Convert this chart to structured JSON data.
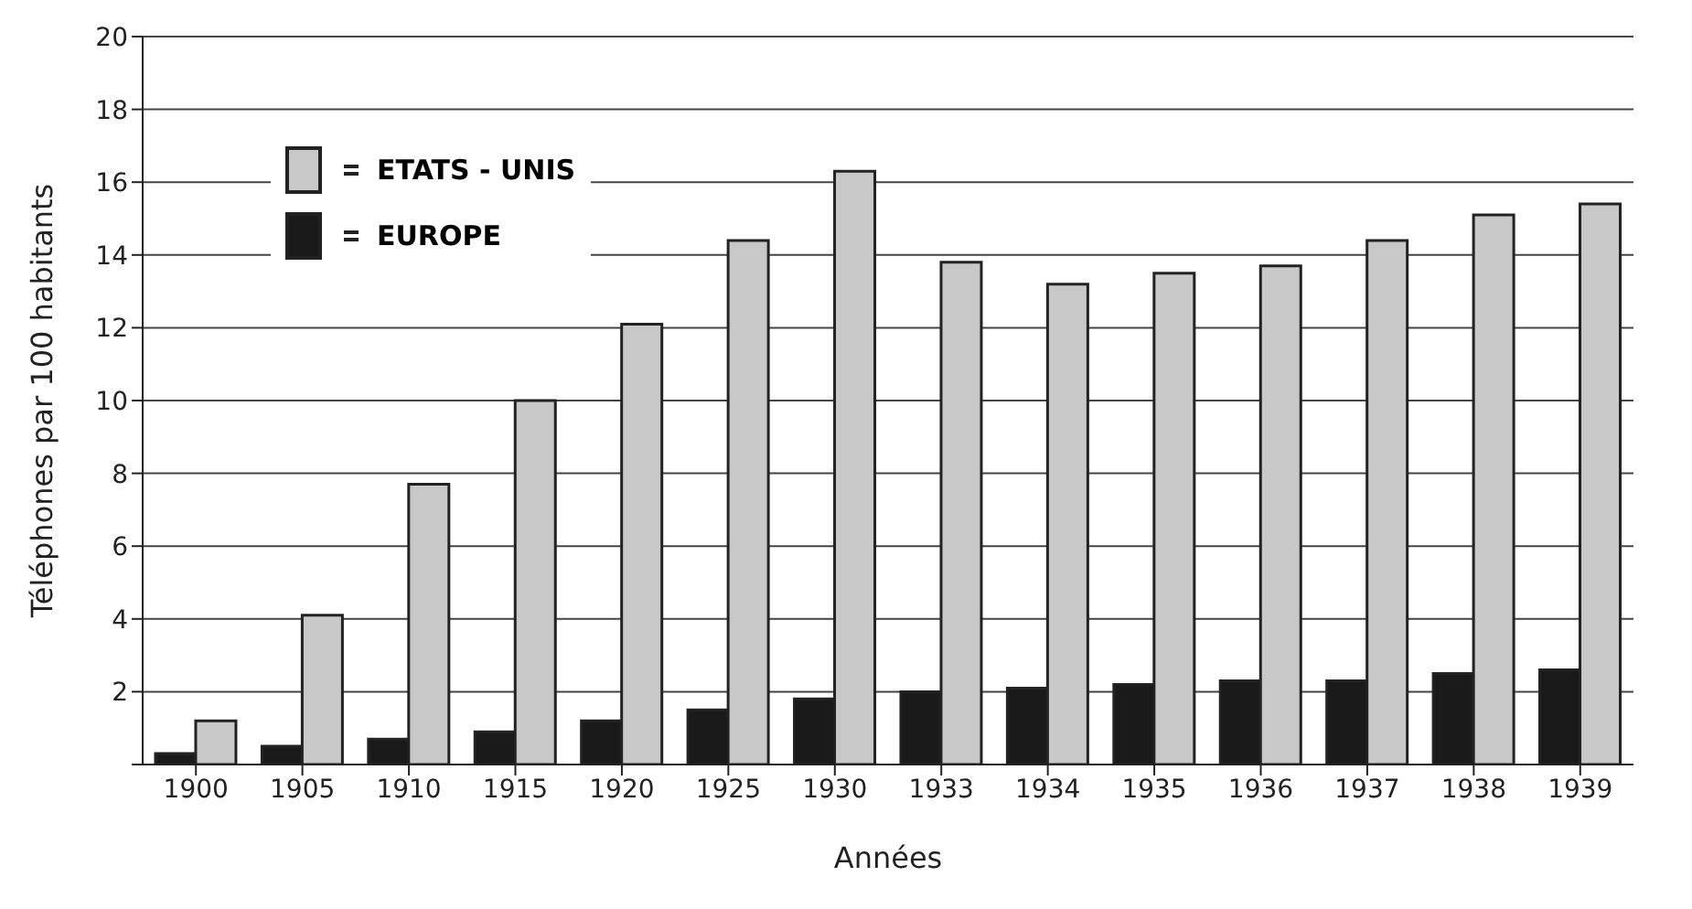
{
  "chart_data": {
    "type": "bar",
    "xlabel": "Années",
    "ylabel": "Téléphones par 100 habitants",
    "categories": [
      "1900",
      "1905",
      "1910",
      "1915",
      "1920",
      "1925",
      "1930",
      "1933",
      "1934",
      "1935",
      "1936",
      "1937",
      "1938",
      "1939"
    ],
    "series": [
      {
        "name": "EUROPE",
        "color": "#1a1a1a",
        "values": [
          0.3,
          0.5,
          0.7,
          0.9,
          1.2,
          1.5,
          1.8,
          2.0,
          2.1,
          2.2,
          2.3,
          2.3,
          2.5,
          2.6
        ]
      },
      {
        "name": "ETATS - UNIS",
        "color": "#c8c8c8",
        "values": [
          1.2,
          4.1,
          7.7,
          10.0,
          12.1,
          14.4,
          16.3,
          13.8,
          13.2,
          13.5,
          13.7,
          14.4,
          15.1,
          15.4
        ]
      }
    ],
    "ylim": [
      0,
      20
    ],
    "yticks": [
      {
        "value": 0,
        "label": null
      },
      2,
      4,
      6,
      8,
      10,
      12,
      14,
      16,
      18,
      20
    ],
    "grid": "y",
    "legend": "top left"
  }
}
